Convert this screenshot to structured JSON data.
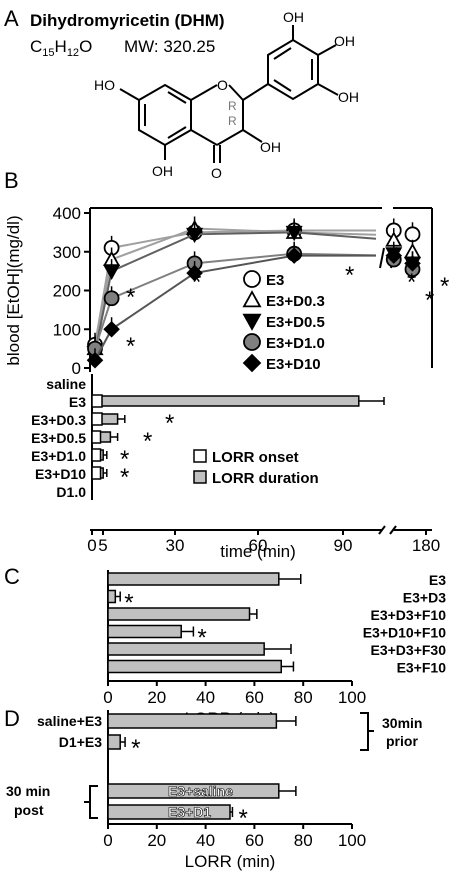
{
  "panel_a": {
    "letter": "A",
    "title": "Dihydromyricetin (DHM)",
    "formula_c": "C",
    "formula_c_sub": "15",
    "formula_h": "H",
    "formula_h_sub": "12",
    "formula_o": "O",
    "mw": "MW: 320.25",
    "atoms": {
      "oh": "OH",
      "ho": "HO",
      "o_ring": "O",
      "o_keto": "O",
      "r": "R"
    }
  },
  "chart_data": [
    {
      "panel": "B",
      "type": "line",
      "xlabel": "time (min)",
      "ylabel": "blood [EtOH](mg/dl)",
      "ylim": [
        0,
        400
      ],
      "yticks": [
        "0",
        "100",
        "200",
        "300",
        "400"
      ],
      "xticks": [
        "0",
        "5",
        "30",
        "60",
        "90",
        "180"
      ],
      "x": [
        0,
        5,
        10,
        30,
        60,
        90,
        180
      ],
      "legend_placement": "right",
      "series": [
        {
          "name": "E3",
          "marker": "circle",
          "color": "#ffffff",
          "values": [
            60,
            310,
            null,
            350,
            355,
            355,
            345
          ]
        },
        {
          "name": "E3+D0.3",
          "marker": "triangle-up",
          "color": "#ffffff",
          "values": [
            50,
            280,
            null,
            360,
            350,
            330,
            300
          ]
        },
        {
          "name": "E3+D0.5",
          "marker": "triangle-down",
          "color": "#000000",
          "values": [
            40,
            250,
            null,
            345,
            350,
            295,
            270
          ]
        },
        {
          "name": "E3+D1.0",
          "marker": "circle",
          "color": "#808080",
          "values": [
            50,
            180,
            null,
            270,
            295,
            280,
            255
          ]
        },
        {
          "name": "E3+D10",
          "marker": "diamond",
          "color": "#000000",
          "values": [
            20,
            100,
            null,
            245,
            290,
            290,
            270
          ]
        }
      ],
      "asterisks": [
        "*",
        "*",
        "*",
        "*",
        "*",
        "*",
        "*"
      ]
    },
    {
      "panel": "B-inset",
      "type": "bar",
      "categories": [
        "saline",
        "E3",
        "E3+D0.3",
        "E3+D0.5",
        "E3+D1.0",
        "E3+D10",
        "D1.0"
      ],
      "series": [
        {
          "name": "LORR onset",
          "color": "#ffffff",
          "values": [
            0,
            4,
            4,
            3,
            3,
            3,
            0
          ]
        },
        {
          "name": "LORR duration",
          "color": "#c0c0c0",
          "values": [
            0,
            73,
            6,
            4,
            2,
            2,
            0
          ]
        }
      ],
      "errors": [
        0,
        7,
        2,
        2,
        1,
        1,
        0
      ],
      "asterisks": [
        "",
        "",
        "*",
        "*",
        "*",
        "*",
        ""
      ]
    },
    {
      "panel": "C",
      "type": "bar",
      "orientation": "horizontal",
      "categories": [
        "E3",
        "E3+D3",
        "E3+D3+F10",
        "E3+D10+F10",
        "E3+D3+F30",
        "E3+F10"
      ],
      "values": [
        70,
        3,
        58,
        30,
        64,
        71
      ],
      "errors": [
        9,
        2,
        3,
        5,
        11,
        5
      ],
      "asterisks": [
        "",
        "*",
        "",
        "*",
        "",
        ""
      ],
      "xlabel": "LORR (min)",
      "xlim": [
        0,
        100
      ],
      "xticks": [
        "0",
        "20",
        "40",
        "60",
        "80",
        "100"
      ]
    },
    {
      "panel": "D",
      "type": "bar",
      "orientation": "horizontal",
      "categories": [
        "saline+E3",
        "D1+E3",
        "E3+saline",
        "E3+D1"
      ],
      "values": [
        69,
        5,
        70,
        50
      ],
      "errors": [
        8,
        2,
        7,
        1
      ],
      "asterisks": [
        "",
        "*",
        "",
        "*"
      ],
      "xlabel": "LORR (min)",
      "xlim": [
        0,
        100
      ],
      "xticks": [
        "0",
        "20",
        "40",
        "60",
        "80",
        "100"
      ],
      "groups": [
        {
          "label_line1": "30min",
          "label_line2": "prior"
        },
        {
          "label_line1": "30 min",
          "label_line2": "post"
        }
      ]
    }
  ],
  "panel_letters": {
    "b": "B",
    "c": "C",
    "d": "D"
  },
  "asterisk": "*"
}
